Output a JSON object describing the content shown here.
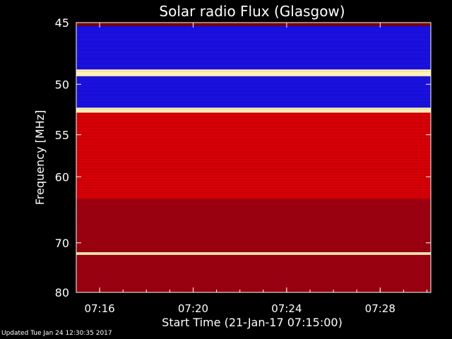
{
  "chart_data": {
    "type": "heatmap",
    "title": "Solar radio Flux (Glasgow)",
    "xlabel": "Start Time (21-Jan-17 07:15:00)",
    "ylabel": "Frequency [MHz]",
    "xlim": [
      "07:15:00",
      "07:30:10"
    ],
    "ylim": [
      45,
      80
    ],
    "y_scale": "log",
    "y_reversed": true,
    "x_ticks": [
      "07:16",
      "07:20",
      "07:24",
      "07:28"
    ],
    "y_ticks": [
      45,
      50,
      55,
      60,
      70,
      80
    ],
    "colormap": "red-temperature",
    "bands": [
      {
        "from": 45.0,
        "to": 45.25,
        "level": "bright"
      },
      {
        "from": 45.25,
        "to": 48.7,
        "level": "low"
      },
      {
        "from": 48.7,
        "to": 49.3,
        "level": "saturated"
      },
      {
        "from": 49.3,
        "to": 52.2,
        "level": "low"
      },
      {
        "from": 52.2,
        "to": 52.7,
        "level": "saturated"
      },
      {
        "from": 52.7,
        "to": 59.0,
        "level": "high"
      },
      {
        "from": 59.0,
        "to": 63.0,
        "level": "high"
      },
      {
        "from": 63.0,
        "to": 71.7,
        "level": "medium"
      },
      {
        "from": 71.7,
        "to": 72.2,
        "level": "saturated"
      },
      {
        "from": 72.2,
        "to": 80.0,
        "level": "medium"
      }
    ]
  },
  "footer": {
    "updated": "Updated Tue Jan 24 12:30:35 2017"
  },
  "colors": {
    "background": "#000000",
    "frame": "#ffffff",
    "low": "#1a10e0",
    "medium": "#a00010",
    "high": "#d80006",
    "saturated": "#fff1b8"
  }
}
